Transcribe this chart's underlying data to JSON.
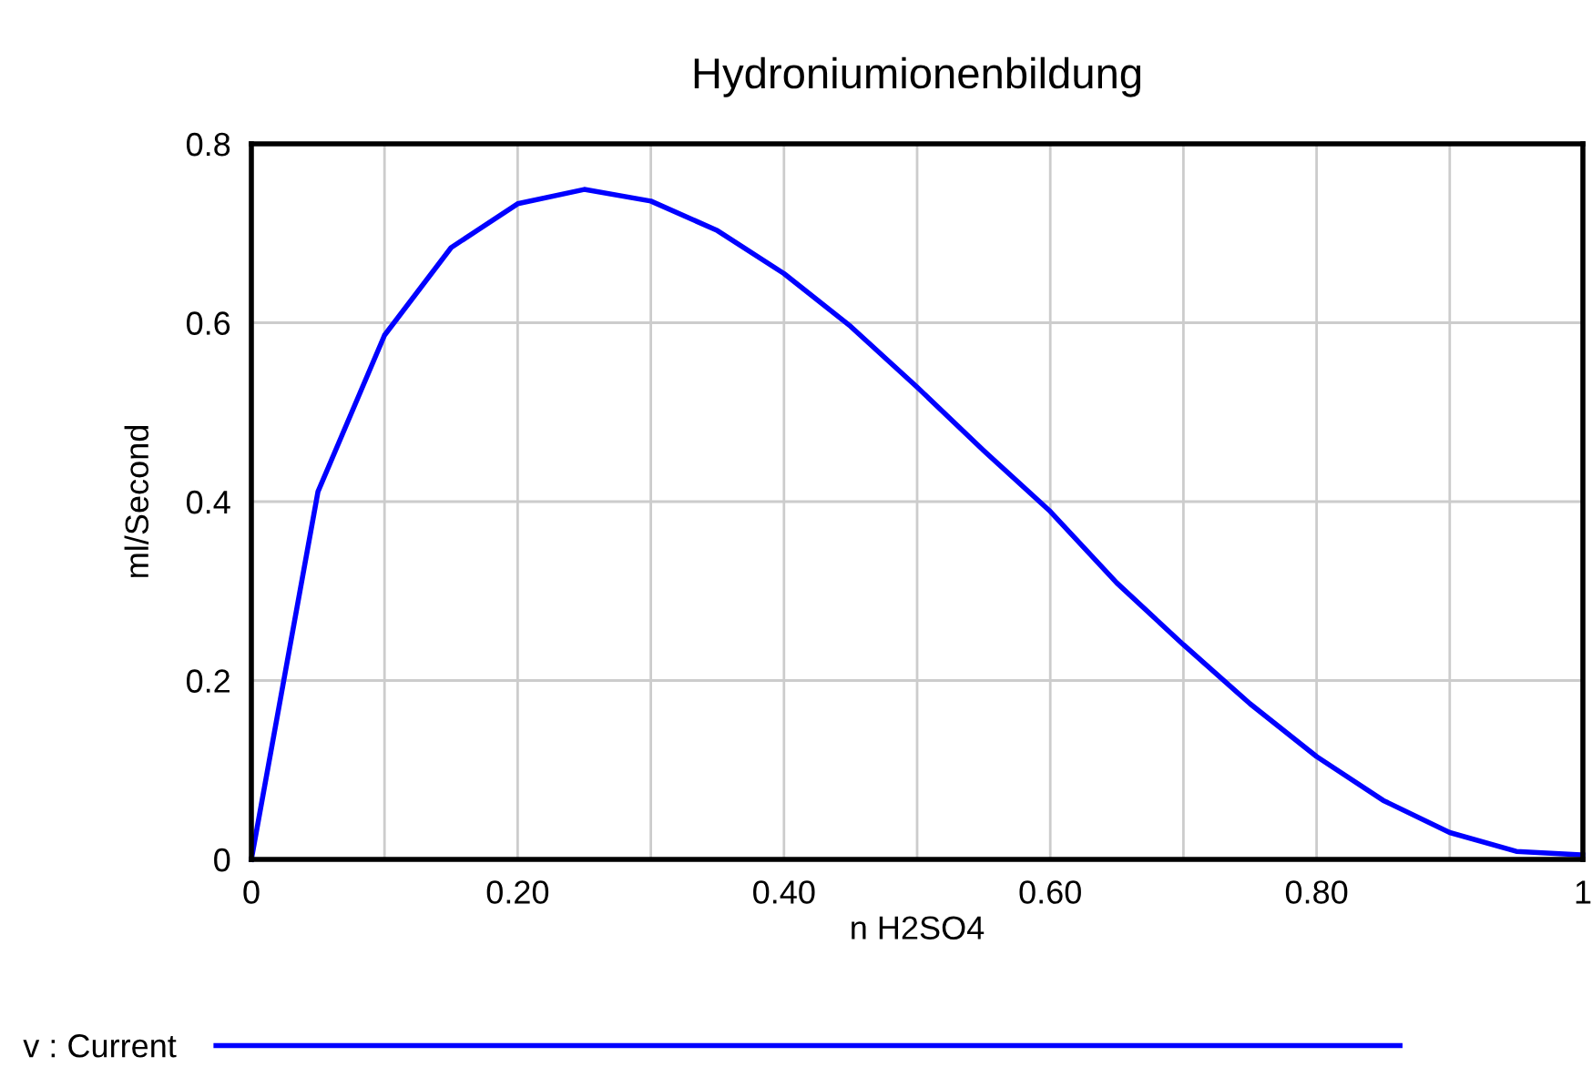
{
  "chart_data": {
    "type": "line",
    "title": "Hydroniumionenbildung",
    "xlabel": "n H2SO4",
    "ylabel": "ml/Second",
    "x": [
      0,
      0.05,
      0.1,
      0.15,
      0.2,
      0.25,
      0.3,
      0.35,
      0.4,
      0.45,
      0.5,
      0.55,
      0.6,
      0.65,
      0.7,
      0.75,
      0.8,
      0.85,
      0.9,
      0.95,
      1.0
    ],
    "series": [
      {
        "name": "v : Current",
        "color": "#0000ff",
        "values": [
          0,
          0.411,
          0.586,
          0.684,
          0.733,
          0.749,
          0.736,
          0.703,
          0.655,
          0.596,
          0.528,
          0.457,
          0.389,
          0.309,
          0.24,
          0.174,
          0.115,
          0.066,
          0.03,
          0.009,
          0.005
        ]
      }
    ],
    "xlim": [
      0,
      1
    ],
    "ylim": [
      0,
      0.8
    ],
    "xticks": [
      0,
      {
        "value": 0.1,
        "label": null
      },
      {
        "value": 0.2,
        "label": "0.20"
      },
      {
        "value": 0.3,
        "label": null
      },
      {
        "value": 0.4,
        "label": "0.40"
      },
      {
        "value": 0.5,
        "label": null
      },
      {
        "value": 0.6,
        "label": "0.60"
      },
      {
        "value": 0.7,
        "label": null
      },
      {
        "value": 0.8,
        "label": "0.80"
      },
      {
        "value": 0.9,
        "label": null
      },
      1
    ],
    "yticks": [
      0,
      0.2,
      0.4,
      0.6,
      0.8
    ],
    "grid": true,
    "legend": "bottom",
    "marker": "none",
    "line_style": "solid"
  }
}
